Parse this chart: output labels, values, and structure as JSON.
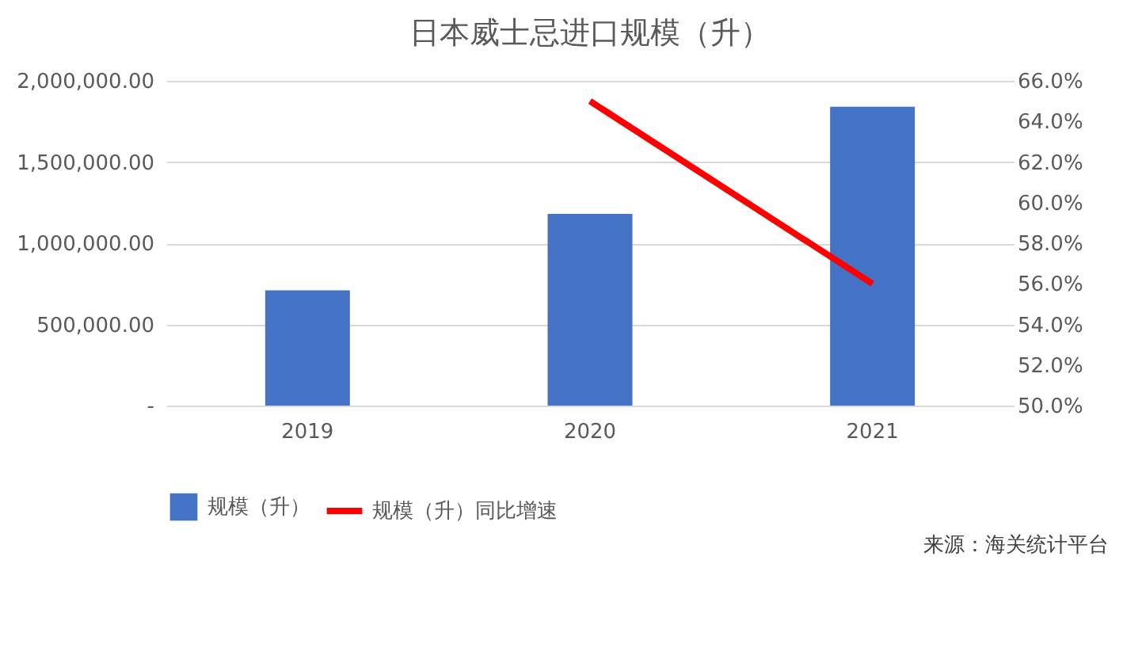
{
  "chart_data": {
    "type": "bar",
    "title": "日本威士忌进口规模（升）",
    "categories": [
      "2019",
      "2020",
      "2021"
    ],
    "series": [
      {
        "name": "规模（升）",
        "color": "#4472c4",
        "values": [
          710000,
          1180000,
          1840000
        ]
      },
      {
        "name": "规模（升）同比增速",
        "type": "line",
        "axis": "y2",
        "color": "#ff0000",
        "values": [
          null,
          65.0,
          56.0
        ]
      }
    ],
    "ylim": [
      0,
      2000000
    ],
    "yticks": [
      {
        "value": 0,
        "label": "-"
      },
      {
        "value": 500000,
        "label": "500,000.00"
      },
      {
        "value": 1000000,
        "label": "1,000,000.00"
      },
      {
        "value": 1500000,
        "label": "1,500,000.00"
      },
      {
        "value": 2000000,
        "label": "2,000,000.00"
      }
    ],
    "y2lim": [
      50,
      66
    ],
    "y2ticks": [
      {
        "value": 50,
        "label": "50.0%"
      },
      {
        "value": 52,
        "label": "52.0%"
      },
      {
        "value": 54,
        "label": "54.0%"
      },
      {
        "value": 56,
        "label": "56.0%"
      },
      {
        "value": 58,
        "label": "58.0%"
      },
      {
        "value": 60,
        "label": "60.0%"
      },
      {
        "value": 62,
        "label": "62.0%"
      },
      {
        "value": 64,
        "label": "64.0%"
      },
      {
        "value": 66,
        "label": "66.0%"
      }
    ],
    "grid": "y",
    "legend": "bottom",
    "line_style": "solid",
    "marker": "none",
    "annotations": [
      "来源：海关统计平台"
    ]
  }
}
